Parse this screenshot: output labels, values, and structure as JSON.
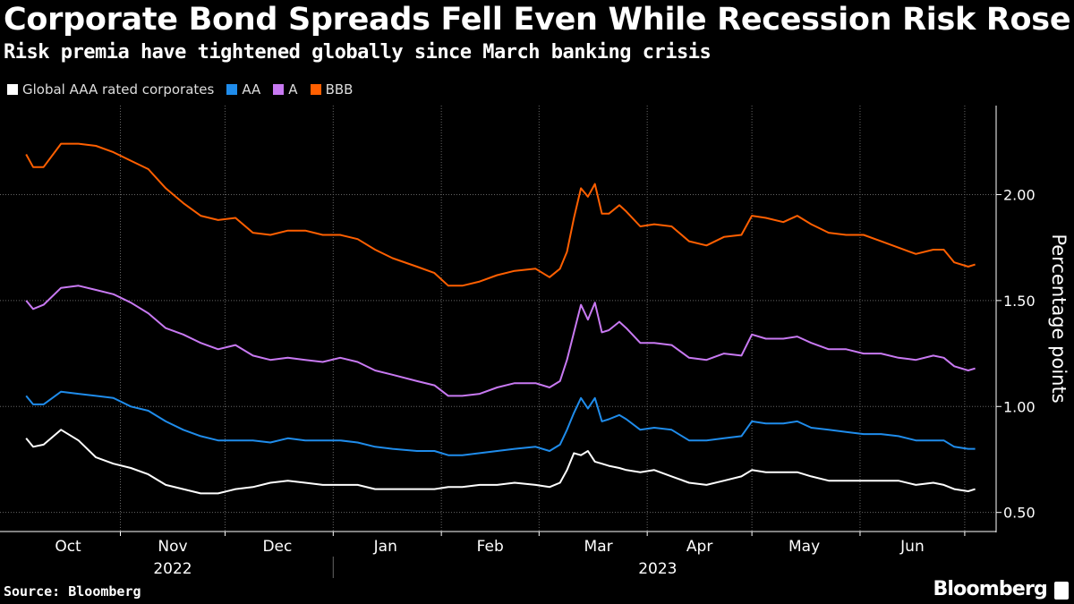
{
  "chart_data": {
    "type": "line",
    "title": "Corporate Bond Spreads Fell Even While Recession Risk Rose",
    "subtitle": "Risk premia have tightened globally since March banking crisis",
    "xlabel": "",
    "ylabel": "Percentage points",
    "x_units": "days since 2022-10-01",
    "x": [
      4,
      6,
      9,
      14,
      19,
      24,
      29,
      34,
      39,
      44,
      49,
      54,
      59,
      64,
      69,
      74,
      79,
      84,
      89,
      94,
      99,
      104,
      109,
      116,
      121,
      125,
      129,
      134,
      139,
      144,
      150,
      154,
      157,
      159,
      161,
      163,
      165,
      167,
      169,
      171,
      174,
      176,
      180,
      184,
      189,
      194,
      199,
      204,
      209,
      212,
      216,
      221,
      225,
      229,
      234,
      239,
      244,
      249,
      254,
      259,
      264,
      267,
      270,
      274,
      276
    ],
    "series": [
      {
        "name": "Global AAA rated corporates",
        "color": "#ffffff",
        "values": [
          0.85,
          0.81,
          0.82,
          0.89,
          0.84,
          0.76,
          0.73,
          0.71,
          0.68,
          0.63,
          0.61,
          0.59,
          0.59,
          0.61,
          0.62,
          0.64,
          0.65,
          0.64,
          0.63,
          0.63,
          0.63,
          0.61,
          0.61,
          0.61,
          0.61,
          0.62,
          0.62,
          0.63,
          0.63,
          0.64,
          0.63,
          0.62,
          0.64,
          0.7,
          0.78,
          0.77,
          0.79,
          0.74,
          0.73,
          0.72,
          0.71,
          0.7,
          0.69,
          0.7,
          0.67,
          0.64,
          0.63,
          0.65,
          0.67,
          0.7,
          0.69,
          0.69,
          0.69,
          0.67,
          0.65,
          0.65,
          0.65,
          0.65,
          0.65,
          0.63,
          0.64,
          0.63,
          0.61,
          0.6,
          0.61
        ]
      },
      {
        "name": "AA",
        "color": "#1f8ceb",
        "values": [
          1.05,
          1.01,
          1.01,
          1.07,
          1.06,
          1.05,
          1.04,
          1.0,
          0.98,
          0.93,
          0.89,
          0.86,
          0.84,
          0.84,
          0.84,
          0.83,
          0.85,
          0.84,
          0.84,
          0.84,
          0.83,
          0.81,
          0.8,
          0.79,
          0.79,
          0.77,
          0.77,
          0.78,
          0.79,
          0.8,
          0.81,
          0.79,
          0.82,
          0.89,
          0.97,
          1.04,
          0.99,
          1.04,
          0.93,
          0.94,
          0.96,
          0.94,
          0.89,
          0.9,
          0.89,
          0.84,
          0.84,
          0.85,
          0.86,
          0.93,
          0.92,
          0.92,
          0.93,
          0.9,
          0.89,
          0.88,
          0.87,
          0.87,
          0.86,
          0.84,
          0.84,
          0.84,
          0.81,
          0.8,
          0.8
        ]
      },
      {
        "name": "A",
        "color": "#c879f2",
        "values": [
          1.5,
          1.46,
          1.48,
          1.56,
          1.57,
          1.55,
          1.53,
          1.49,
          1.44,
          1.37,
          1.34,
          1.3,
          1.27,
          1.29,
          1.24,
          1.22,
          1.23,
          1.22,
          1.21,
          1.23,
          1.21,
          1.17,
          1.15,
          1.12,
          1.1,
          1.05,
          1.05,
          1.06,
          1.09,
          1.11,
          1.11,
          1.09,
          1.12,
          1.22,
          1.35,
          1.48,
          1.41,
          1.49,
          1.35,
          1.36,
          1.4,
          1.37,
          1.3,
          1.3,
          1.29,
          1.23,
          1.22,
          1.25,
          1.24,
          1.34,
          1.32,
          1.32,
          1.33,
          1.3,
          1.27,
          1.27,
          1.25,
          1.25,
          1.23,
          1.22,
          1.24,
          1.23,
          1.19,
          1.17,
          1.18
        ]
      },
      {
        "name": "BBB",
        "color": "#ff5f00",
        "values": [
          2.19,
          2.13,
          2.13,
          2.24,
          2.24,
          2.23,
          2.2,
          2.16,
          2.12,
          2.03,
          1.96,
          1.9,
          1.88,
          1.89,
          1.82,
          1.81,
          1.83,
          1.83,
          1.81,
          1.81,
          1.79,
          1.74,
          1.7,
          1.66,
          1.63,
          1.57,
          1.57,
          1.59,
          1.62,
          1.64,
          1.65,
          1.61,
          1.65,
          1.73,
          1.89,
          2.03,
          1.99,
          2.05,
          1.91,
          1.91,
          1.95,
          1.92,
          1.85,
          1.86,
          1.85,
          1.78,
          1.76,
          1.8,
          1.81,
          1.9,
          1.89,
          1.87,
          1.9,
          1.86,
          1.82,
          1.81,
          1.81,
          1.78,
          1.75,
          1.72,
          1.74,
          1.74,
          1.68,
          1.66,
          1.67
        ]
      }
    ],
    "yticks": [
      0.5,
      1.0,
      1.5,
      2.0
    ],
    "ytick_labels": [
      "0.50",
      "1.00",
      "1.50",
      "2.00"
    ],
    "ylim": [
      0.41,
      2.42
    ],
    "xlim": [
      -3.5,
      282
    ],
    "month_boundaries": [
      31,
      61,
      92,
      123,
      151,
      182,
      212,
      243,
      273
    ],
    "month_labels": [
      {
        "label": "Oct",
        "day": 16
      },
      {
        "label": "Nov",
        "day": 46
      },
      {
        "label": "Dec",
        "day": 76
      },
      {
        "label": "Jan",
        "day": 107
      },
      {
        "label": "Feb",
        "day": 137
      },
      {
        "label": "Mar",
        "day": 168
      },
      {
        "label": "Apr",
        "day": 197
      },
      {
        "label": "May",
        "day": 227
      },
      {
        "label": "Jun",
        "day": 258
      }
    ],
    "year_labels": [
      {
        "label": "2022",
        "day": 46
      },
      {
        "label": "2023",
        "day": 185
      }
    ],
    "year_divider_day": 92,
    "grid": true,
    "legend_position": "top-left"
  },
  "footer": {
    "source": "Source: Bloomberg",
    "brand": "Bloomberg"
  }
}
